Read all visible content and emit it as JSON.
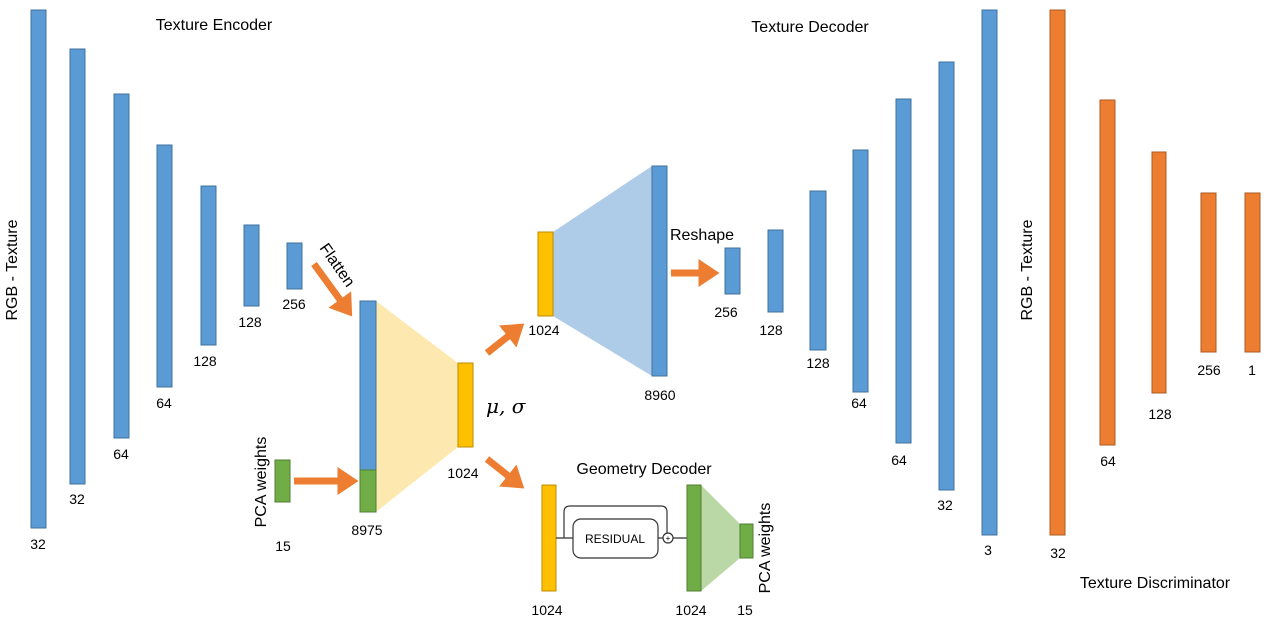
{
  "titles": {
    "encoder": "Texture Encoder",
    "decoder": "Texture Decoder",
    "geometry_decoder": "Geometry Decoder",
    "discriminator": "Texture Discriminator"
  },
  "side_labels": {
    "rgb_texture_input": "RGB - Texture",
    "rgb_texture_output": "RGB - Texture",
    "pca_weights_input": "PCA weights",
    "pca_weights_output": "PCA weights"
  },
  "ops": {
    "flatten": "Flatten",
    "reshape": "Reshape",
    "latent": "μ, σ",
    "residual": "RESIDUAL",
    "plus": "+"
  },
  "colors": {
    "conv": "#5b9bd5",
    "discriminator": "#ed7d31",
    "pca": "#70ad47",
    "latent": "#ffc000"
  },
  "encoder_layers": [
    "32",
    "32",
    "64",
    "64",
    "128",
    "128",
    "256"
  ],
  "flattened": "8975",
  "pca_input": "15",
  "latent_size": "1024",
  "decoder_fc_in": "1024",
  "decoder_fc_out": "8960",
  "decoder_layers": [
    "256",
    "128",
    "128",
    "64",
    "64",
    "32",
    "3"
  ],
  "discriminator_layers": [
    "32",
    "64",
    "128",
    "256",
    "1"
  ],
  "geometry": {
    "input": "1024",
    "residual_out": "1024",
    "output": "15"
  }
}
